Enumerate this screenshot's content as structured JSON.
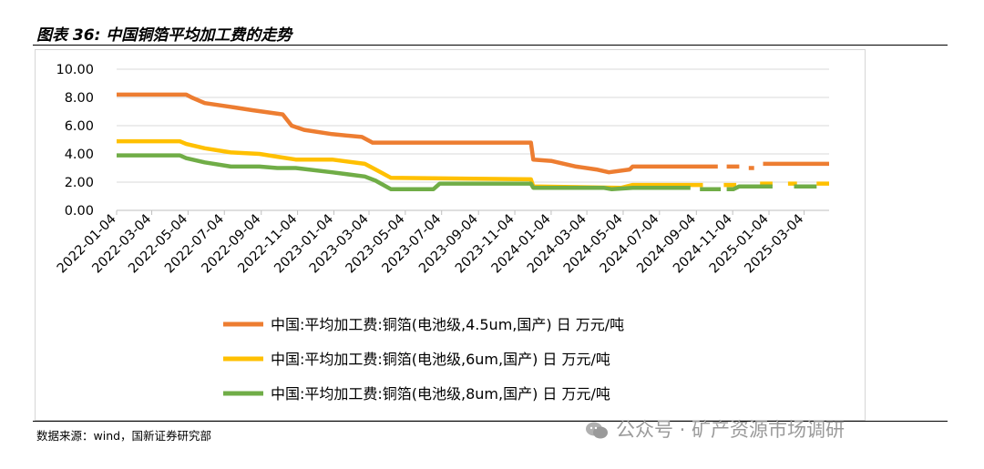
{
  "header": {
    "title": "图表 36:  中国铜箔平均加工费的走势"
  },
  "footer": {
    "source": "数据来源：wind，国新证券研究部"
  },
  "watermark": {
    "text": "公众号 · 矿产资源市场调研"
  },
  "chart_data": {
    "type": "line",
    "title": "",
    "xlabel": "",
    "ylabel": "",
    "ylim": [
      0,
      10
    ],
    "yticks": [
      "10.00",
      "8.00",
      "6.00",
      "4.00",
      "2.00",
      "0.00"
    ],
    "ytick_values": [
      10,
      8,
      6,
      4,
      2,
      0
    ],
    "xlim": [
      "2022-01-04",
      "2025-04-15"
    ],
    "xticks": [
      "2022-01-04",
      "2022-03-04",
      "2022-05-04",
      "2022-07-04",
      "2022-09-04",
      "2022-11-04",
      "2023-01-04",
      "2023-03-04",
      "2023-05-04",
      "2023-07-04",
      "2023-09-04",
      "2023-11-04",
      "2024-01-04",
      "2024-03-04",
      "2024-05-04",
      "2024-07-04",
      "2024-09-04",
      "2024-11-04",
      "2025-01-04",
      "2025-03-04"
    ],
    "grid": "horizontal",
    "legend_position": "bottom",
    "series": [
      {
        "name": "中国:平均加工费:铜箔(电池级,4.5um,国产) 日 万元/吨",
        "color": "#ED7D31",
        "points": [
          [
            "2022-01-04",
            8.2
          ],
          [
            "2022-05-01",
            8.2
          ],
          [
            "2022-05-10",
            8.0
          ],
          [
            "2022-06-01",
            7.6
          ],
          [
            "2022-07-20",
            7.3
          ],
          [
            "2022-08-20",
            7.1
          ],
          [
            "2022-10-10",
            6.8
          ],
          [
            "2022-10-25",
            6.0
          ],
          [
            "2022-11-15",
            5.7
          ],
          [
            "2023-01-01",
            5.4
          ],
          [
            "2023-02-20",
            5.2
          ],
          [
            "2023-03-10",
            4.8
          ],
          [
            "2023-12-01",
            4.8
          ],
          [
            "2023-12-05",
            3.6
          ],
          [
            "2024-01-05",
            3.5
          ],
          [
            "2024-02-15",
            3.1
          ],
          [
            "2024-03-20",
            2.9
          ],
          [
            "2024-04-10",
            2.7
          ],
          [
            "2024-05-15",
            2.9
          ],
          [
            "2024-05-20",
            3.1
          ],
          [
            "2024-10-10",
            3.1
          ],
          null,
          [
            "2024-10-25",
            3.1
          ],
          [
            "2024-11-15",
            3.1
          ],
          null,
          [
            "2024-12-01",
            3.0
          ],
          [
            "2024-12-10",
            3.0
          ],
          null,
          [
            "2024-12-25",
            3.3
          ],
          [
            "2025-04-15",
            3.3
          ]
        ]
      },
      {
        "name": "中国:平均加工费:铜箔(电池级,6um,国产) 日 万元/吨",
        "color": "#FFC000",
        "points": [
          [
            "2022-01-04",
            4.9
          ],
          [
            "2022-04-20",
            4.9
          ],
          [
            "2022-05-01",
            4.7
          ],
          [
            "2022-06-01",
            4.4
          ],
          [
            "2022-07-15",
            4.1
          ],
          [
            "2022-09-01",
            4.0
          ],
          [
            "2022-10-01",
            3.8
          ],
          [
            "2022-11-01",
            3.6
          ],
          [
            "2023-01-01",
            3.6
          ],
          [
            "2023-02-25",
            3.3
          ],
          [
            "2023-03-15",
            2.9
          ],
          [
            "2023-04-10",
            2.3
          ],
          [
            "2023-12-01",
            2.2
          ],
          [
            "2023-12-05",
            1.7
          ],
          [
            "2024-05-01",
            1.6
          ],
          [
            "2024-05-20",
            1.8
          ],
          [
            "2024-07-01",
            1.8
          ],
          [
            "2024-09-15",
            1.8
          ],
          null,
          [
            "2024-10-20",
            1.8
          ],
          [
            "2024-11-10",
            1.8
          ],
          null,
          [
            "2024-12-20",
            1.9
          ],
          [
            "2025-01-10",
            1.9
          ],
          null,
          [
            "2025-02-05",
            1.9
          ],
          [
            "2025-02-20",
            1.9
          ],
          null,
          [
            "2025-03-25",
            1.9
          ],
          [
            "2025-04-15",
            1.9
          ]
        ]
      },
      {
        "name": "中国:平均加工费:铜箔(电池级,8um,国产) 日 万元/吨",
        "color": "#70AD47",
        "points": [
          [
            "2022-01-04",
            3.9
          ],
          [
            "2022-04-20",
            3.9
          ],
          [
            "2022-05-01",
            3.7
          ],
          [
            "2022-06-01",
            3.4
          ],
          [
            "2022-07-15",
            3.1
          ],
          [
            "2022-09-01",
            3.1
          ],
          [
            "2022-10-01",
            3.0
          ],
          [
            "2022-11-01",
            3.0
          ],
          [
            "2023-01-01",
            2.7
          ],
          [
            "2023-02-25",
            2.4
          ],
          [
            "2023-03-15",
            2.1
          ],
          [
            "2023-04-10",
            1.5
          ],
          [
            "2023-06-20",
            1.5
          ],
          [
            "2023-07-01",
            1.9
          ],
          [
            "2023-12-01",
            1.9
          ],
          [
            "2023-12-05",
            1.6
          ],
          [
            "2024-04-01",
            1.6
          ],
          [
            "2024-04-15",
            1.5
          ],
          [
            "2024-05-20",
            1.6
          ],
          [
            "2024-08-25",
            1.6
          ],
          null,
          [
            "2024-09-10",
            1.5
          ],
          [
            "2024-10-15",
            1.5
          ],
          null,
          [
            "2024-10-25",
            1.5
          ],
          [
            "2024-11-05",
            1.5
          ],
          [
            "2024-11-15",
            1.7
          ],
          [
            "2025-01-10",
            1.7
          ],
          null,
          [
            "2025-02-15",
            1.7
          ],
          [
            "2025-03-25",
            1.7
          ]
        ]
      }
    ]
  }
}
